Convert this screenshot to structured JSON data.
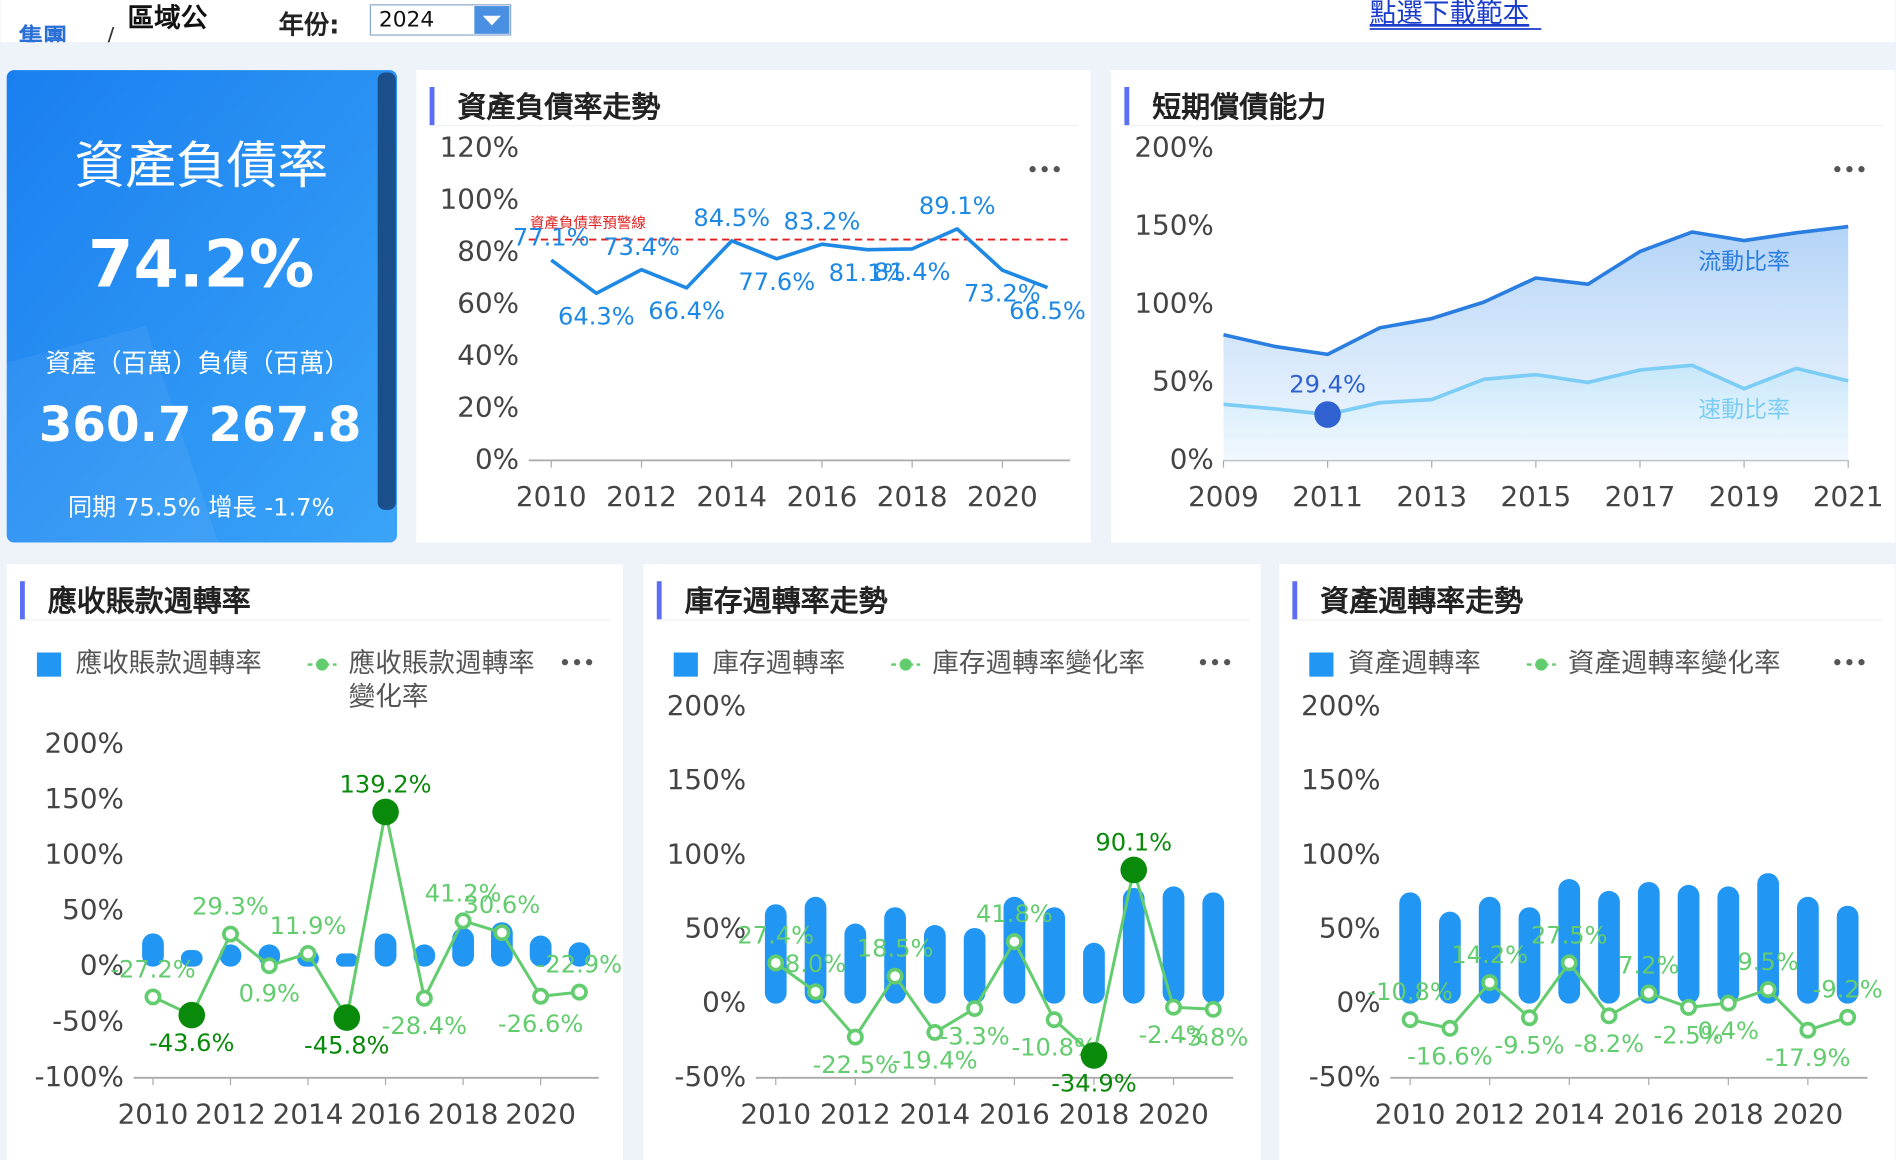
{
  "header": {
    "breadcrumb_group": "集團",
    "separator": "/",
    "breadcrumb_region": "區域公",
    "year_label": "年份:",
    "year_value": "2024",
    "download_link": "點選下載範本"
  },
  "kpi": {
    "title": "資產負債率",
    "value": "74.2%",
    "subtitle": "資產（百萬）負債（百萬）",
    "assets": "360.7",
    "liabilities": "267.8",
    "comparison": "同期 75.5% 增長 -1.7%"
  },
  "chart_data": [
    {
      "type": "line",
      "title": "資產負債率走勢",
      "x": [
        2010,
        2011,
        2012,
        2013,
        2014,
        2015,
        2016,
        2017,
        2018,
        2019,
        2020,
        2021
      ],
      "xlim": [
        2009.5,
        2021.5
      ],
      "xticks": [
        2010,
        2012,
        2014,
        2016,
        2018,
        2020
      ],
      "ylim": [
        0,
        120
      ],
      "yticks": [
        {
          "value": 0,
          "label": "0%"
        },
        {
          "value": 20,
          "label": "20%"
        },
        {
          "value": 40,
          "label": "40%"
        },
        {
          "value": 60,
          "label": "60%"
        },
        {
          "value": 80,
          "label": "80%"
        },
        {
          "value": 100,
          "label": "100%"
        },
        {
          "value": 120,
          "label": "120%"
        }
      ],
      "series": [
        {
          "color": "#1e88e5",
          "values": [
            77.1,
            64.3,
            73.4,
            66.4,
            84.5,
            77.6,
            83.2,
            81.1,
            81.4,
            89.1,
            73.2,
            66.5
          ],
          "value_labels": [
            "77.1%",
            "64.3%",
            "73.4%",
            "66.4%",
            "84.5%",
            "77.6%",
            "83.2%",
            "81.1%",
            "81.4%",
            "89.1%",
            "73.2%",
            "66.5%"
          ]
        }
      ],
      "threshold": {
        "value": 85,
        "label": "資產負債率預警線",
        "color": "#e02020"
      }
    },
    {
      "type": "area",
      "title": "短期償債能力",
      "x": [
        2009,
        2010,
        2011,
        2012,
        2013,
        2014,
        2015,
        2016,
        2017,
        2018,
        2019,
        2020,
        2021
      ],
      "xlim": [
        2009,
        2021
      ],
      "xticks": [
        2009,
        2011,
        2013,
        2015,
        2017,
        2019,
        2021
      ],
      "ylim": [
        0,
        200
      ],
      "yticks": [
        {
          "value": 0,
          "label": "0%"
        },
        {
          "value": 50,
          "label": "50%"
        },
        {
          "value": 100,
          "label": "100%"
        },
        {
          "value": 150,
          "label": "150%"
        },
        {
          "value": 200,
          "label": "200%"
        }
      ],
      "marker_color": "#2f62d0",
      "series": [
        {
          "name": "流動比率",
          "color": "#2a7de1",
          "values": [
            80.6,
            73,
            68,
            85,
            91,
            101.5,
            117,
            113,
            134,
            146.5,
            141,
            146,
            150
          ]
        },
        {
          "name": "速動比率",
          "color": "#7ccdf5",
          "values": [
            36,
            33,
            29.4,
            37,
            39,
            52,
            55,
            50,
            58,
            61,
            46,
            59,
            51
          ],
          "value_labels": [
            null,
            null,
            "29.4%",
            null,
            null,
            null,
            null,
            null,
            null,
            null,
            null,
            null,
            null
          ]
        }
      ]
    },
    {
      "type": "combo",
      "title": "應收賬款週轉率",
      "x": [
        2010,
        2011,
        2012,
        2013,
        2014,
        2015,
        2016,
        2017,
        2018,
        2019,
        2020,
        2021
      ],
      "xlim": [
        2009.5,
        2021.5
      ],
      "xticks": [
        2010,
        2012,
        2014,
        2016,
        2018,
        2020
      ],
      "ylim": [
        -100,
        200
      ],
      "yticks": [
        {
          "value": -100,
          "label": "-100%"
        },
        {
          "value": -50,
          "label": "-50%"
        },
        {
          "value": 0,
          "label": "0%"
        },
        {
          "value": 50,
          "label": "50%"
        },
        {
          "value": 100,
          "label": "100%"
        },
        {
          "value": 150,
          "label": "150%"
        },
        {
          "value": 200,
          "label": "200%"
        }
      ],
      "series": [
        {
          "name": "應收賬款週轉率",
          "type": "bar",
          "color": "#2196f3",
          "values": [
            30,
            15,
            20,
            20,
            15,
            12,
            30,
            20,
            35,
            40,
            28,
            22
          ]
        },
        {
          "name": "應收賬款週轉率變化率",
          "type": "line",
          "color": "#62cc6e",
          "highlight_color": "#0a8a0a",
          "highlight_points": [
            1,
            5,
            6
          ],
          "values": [
            -27.2,
            -43.6,
            29.3,
            0.9,
            11.9,
            -45.8,
            139.2,
            -28.4,
            41.2,
            30.6,
            -26.6,
            -22.9
          ],
          "value_labels": [
            "-27.2%",
            "-43.6%",
            "29.3%",
            "0.9%",
            "11.9%",
            "-45.8%",
            "139.2%",
            "-28.4%",
            "41.2%",
            "30.6%",
            "-26.6%",
            "-22.9%"
          ]
        }
      ]
    },
    {
      "type": "combo",
      "title": "庫存週轉率走勢",
      "x": [
        2010,
        2011,
        2012,
        2013,
        2014,
        2015,
        2016,
        2017,
        2018,
        2019,
        2020,
        2021
      ],
      "xlim": [
        2009.5,
        2021.5
      ],
      "xticks": [
        2010,
        2012,
        2014,
        2016,
        2018,
        2020
      ],
      "ylim": [
        -50,
        200
      ],
      "yticks": [
        {
          "value": -50,
          "label": "-50%"
        },
        {
          "value": 0,
          "label": "0%"
        },
        {
          "value": 50,
          "label": "50%"
        },
        {
          "value": 100,
          "label": "100%"
        },
        {
          "value": 150,
          "label": "150%"
        },
        {
          "value": 200,
          "label": "200%"
        }
      ],
      "series": [
        {
          "name": "庫存週轉率",
          "type": "bar",
          "color": "#2196f3",
          "values": [
            67,
            72,
            54,
            65,
            53,
            51,
            72,
            65,
            41,
            78,
            79,
            75
          ]
        },
        {
          "name": "庫存週轉率變化率",
          "type": "line",
          "color": "#62cc6e",
          "highlight_color": "#0a8a0a",
          "highlight_points": [
            8,
            9
          ],
          "values": [
            27.4,
            8.0,
            -22.5,
            18.5,
            -19.4,
            -3.3,
            41.8,
            -10.8,
            -34.9,
            90.1,
            -2.4,
            -3.8
          ],
          "value_labels": [
            "27.4%",
            "8.0%",
            "-22.5%",
            "18.5%",
            "-19.4%",
            "-3.3%",
            "41.8%",
            "-10.8%",
            "-34.9%",
            "90.1%",
            "-2.4%",
            "-3.8%"
          ]
        }
      ]
    },
    {
      "type": "combo",
      "title": "資產週轉率走勢",
      "x": [
        2010,
        2011,
        2012,
        2013,
        2014,
        2015,
        2016,
        2017,
        2018,
        2019,
        2020,
        2021
      ],
      "xlim": [
        2009.5,
        2021.5
      ],
      "xticks": [
        2010,
        2012,
        2014,
        2016,
        2018,
        2020
      ],
      "ylim": [
        -50,
        200
      ],
      "yticks": [
        {
          "value": -50,
          "label": "-50%"
        },
        {
          "value": 0,
          "label": "0%"
        },
        {
          "value": 50,
          "label": "50%"
        },
        {
          "value": 100,
          "label": "100%"
        },
        {
          "value": 150,
          "label": "150%"
        },
        {
          "value": 200,
          "label": "200%"
        }
      ],
      "series": [
        {
          "name": "資產週轉率",
          "type": "bar",
          "color": "#2196f3",
          "values": [
            75,
            62,
            72,
            65,
            84,
            76,
            82,
            80,
            79,
            88,
            72,
            66
          ]
        },
        {
          "name": "資產週轉率變化率",
          "type": "line",
          "color": "#62cc6e",
          "highlight_color": "#0a8a0a",
          "highlight_points": [],
          "values": [
            -10.8,
            -16.6,
            14.2,
            -9.5,
            27.5,
            -8.2,
            7.2,
            -2.5,
            0.4,
            9.5,
            -17.9,
            -9.2
          ],
          "value_labels": [
            "-10.8%",
            "-16.6%",
            "14.2%",
            "-9.5%",
            "27.5%",
            "-8.2%",
            "7.2%",
            "-2.5%",
            "0.4%",
            "9.5%",
            "-17.9%",
            "-9.2%"
          ]
        }
      ]
    }
  ]
}
